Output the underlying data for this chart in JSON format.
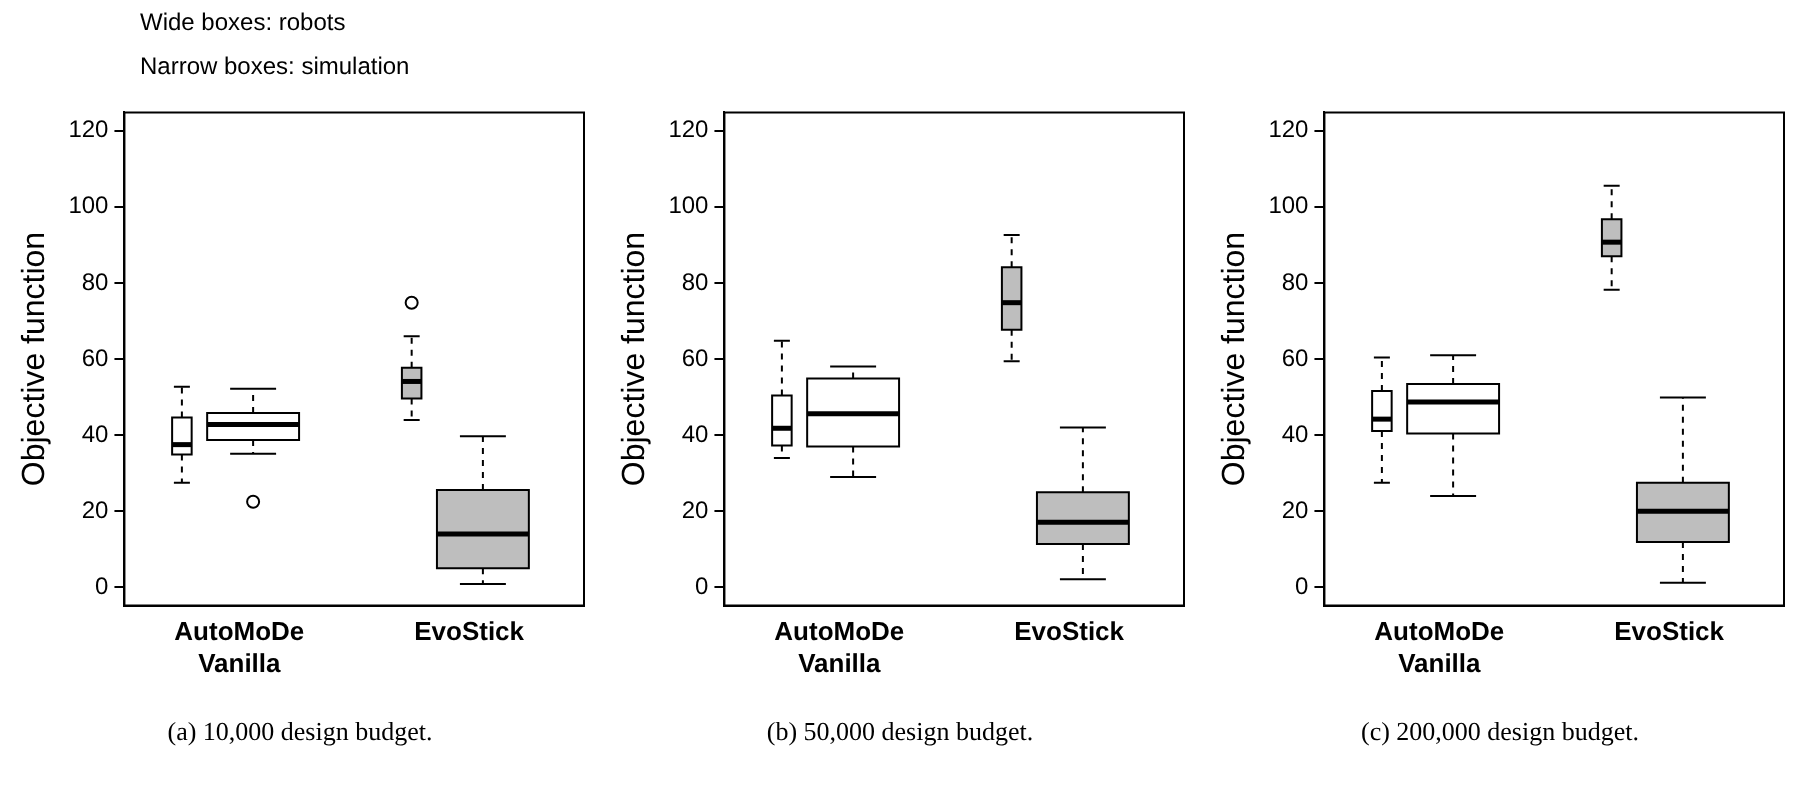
{
  "chart_data": [
    {
      "type": "box",
      "annotations": [
        "Wide boxes: robots",
        "Narrow boxes: simulation",
        "(a) 10,000 design budget."
      ],
      "ylabel": "Objective function",
      "categories": [
        "AutoMoDe Vanilla",
        "EvoStick"
      ],
      "ylim": [
        -4.8,
        124.8
      ],
      "yticks": [
        0,
        20,
        40,
        60,
        80,
        100,
        120
      ],
      "grid": false,
      "series": [
        {
          "colors": [
            "#ffffff",
            "#bebebe"
          ],
          "boxes": [
            {
              "low": 27.5,
              "q1": 34.9,
              "median": 37.5,
              "q3": 44.6,
              "high": 52.7
            },
            {
              "low": 44,
              "q1": 49.6,
              "median": 54.1,
              "q3": 57.7,
              "high": 66,
              "outliers": [
                74.8
              ]
            }
          ]
        },
        {
          "colors": [
            "#ffffff",
            "#bebebe"
          ],
          "boxes": [
            {
              "low": 35.1,
              "q1": 38.7,
              "median": 42.8,
              "q3": 45.8,
              "high": 52.2,
              "outliers": [
                22.5
              ]
            },
            {
              "low": 0.9,
              "q1": 5,
              "median": 14,
              "q3": 25.6,
              "high": 39.7
            }
          ]
        }
      ]
    },
    {
      "type": "box",
      "annotations": [
        "(b) 50,000 design budget."
      ],
      "ylabel": "Objective function",
      "categories": [
        "AutoMoDe Vanilla",
        "EvoStick"
      ],
      "ylim": [
        -4.8,
        124.8
      ],
      "yticks": [
        0,
        20,
        40,
        60,
        80,
        100,
        120
      ],
      "grid": false,
      "series": [
        {
          "colors": [
            "#ffffff",
            "#bebebe"
          ],
          "boxes": [
            {
              "low": 34,
              "q1": 37.3,
              "median": 41.8,
              "q3": 50.4,
              "high": 64.8
            },
            {
              "low": 59.4,
              "q1": 67.7,
              "median": 74.8,
              "q3": 84.1,
              "high": 92.6
            }
          ]
        },
        {
          "colors": [
            "#ffffff",
            "#bebebe"
          ],
          "boxes": [
            {
              "low": 29,
              "q1": 37,
              "median": 45.6,
              "q3": 54.9,
              "high": 58
            },
            {
              "low": 2.1,
              "q1": 11.4,
              "median": 17.1,
              "q3": 25,
              "high": 42
            }
          ]
        }
      ]
    },
    {
      "type": "box",
      "annotations": [
        "(c) 200,000 design budget."
      ],
      "ylabel": "Objective function",
      "categories": [
        "AutoMoDe Vanilla",
        "EvoStick"
      ],
      "ylim": [
        -4.8,
        124.8
      ],
      "yticks": [
        0,
        20,
        40,
        60,
        80,
        100,
        120
      ],
      "grid": false,
      "series": [
        {
          "colors": [
            "#ffffff",
            "#bebebe"
          ],
          "boxes": [
            {
              "low": 27.5,
              "q1": 41.1,
              "median": 44.2,
              "q3": 51.6,
              "high": 60.4
            },
            {
              "low": 78.2,
              "q1": 87,
              "median": 90.7,
              "q3": 96.7,
              "high": 105.5
            }
          ]
        },
        {
          "colors": [
            "#ffffff",
            "#bebebe"
          ],
          "boxes": [
            {
              "low": 24,
              "q1": 40.4,
              "median": 48.7,
              "q3": 53.4,
              "high": 61
            },
            {
              "low": 1.2,
              "q1": 11.9,
              "median": 20,
              "q3": 27.5,
              "high": 49.9
            }
          ]
        }
      ]
    }
  ]
}
